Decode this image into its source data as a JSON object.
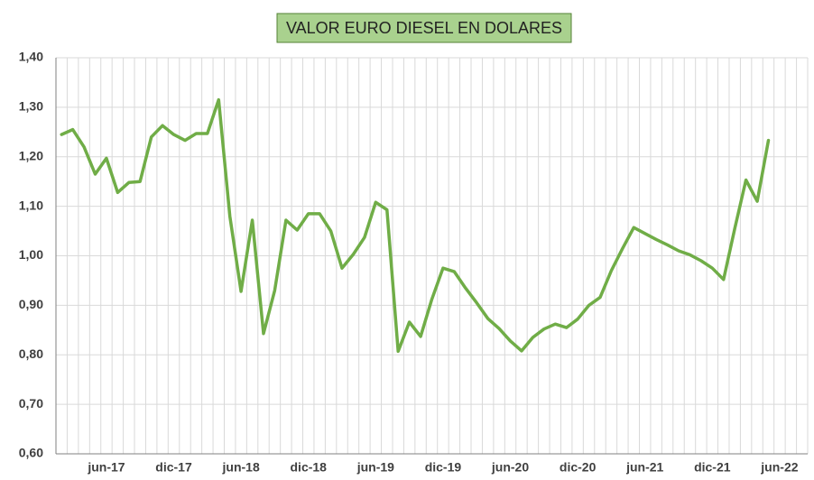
{
  "chart_data": {
    "type": "line",
    "title": "VALOR EURO DIESEL EN DOLARES",
    "categories": [
      null,
      null,
      null,
      null,
      "jun-17",
      null,
      null,
      null,
      null,
      null,
      "dic-17",
      null,
      null,
      null,
      null,
      null,
      "jun-18",
      null,
      null,
      null,
      null,
      null,
      "dic-18",
      null,
      null,
      null,
      null,
      null,
      "jun-19",
      null,
      null,
      null,
      null,
      null,
      "dic-19",
      null,
      null,
      null,
      null,
      null,
      "jun-20",
      null,
      null,
      null,
      null,
      null,
      "dic-20",
      null,
      null,
      null,
      null,
      null,
      "jun-21",
      null,
      null,
      null,
      null,
      null,
      "dic-21",
      null,
      null,
      null,
      null,
      null,
      "jun-22",
      null,
      null
    ],
    "values": [
      1.245,
      1.255,
      1.22,
      1.165,
      1.197,
      1.128,
      1.148,
      1.15,
      1.24,
      1.263,
      1.245,
      1.233,
      1.247,
      1.247,
      1.315,
      1.08,
      0.928,
      1.072,
      0.843,
      0.93,
      1.072,
      1.052,
      1.085,
      1.085,
      1.05,
      0.975,
      1.003,
      1.037,
      1.108,
      1.093,
      0.807,
      0.866,
      0.837,
      0.912,
      0.975,
      0.968,
      0.935,
      0.905,
      0.873,
      0.853,
      0.828,
      0.808,
      0.835,
      0.852,
      0.862,
      0.855,
      0.872,
      0.9,
      0.916,
      0.97,
      1.015,
      1.057,
      1.045,
      1.033,
      1.022,
      1.01,
      1.002,
      0.99,
      0.975,
      0.952,
      1.055,
      1.153,
      1.11,
      1.233,
      null,
      null,
      null
    ],
    "color": "#70ad47",
    "ylim": [
      0.6,
      1.4
    ],
    "yticks": [
      {
        "value": 0.6,
        "label": "0,60"
      },
      {
        "value": 0.7,
        "label": "0,70"
      },
      {
        "value": 0.8,
        "label": "0,80"
      },
      {
        "value": 0.9,
        "label": "0,90"
      },
      {
        "value": 1.0,
        "label": "1,00"
      },
      {
        "value": 1.1,
        "label": "1,10"
      },
      {
        "value": 1.2,
        "label": "1,20"
      },
      {
        "value": 1.3,
        "label": "1,30"
      },
      {
        "value": 1.4,
        "label": "1,40"
      }
    ],
    "grid": true
  }
}
